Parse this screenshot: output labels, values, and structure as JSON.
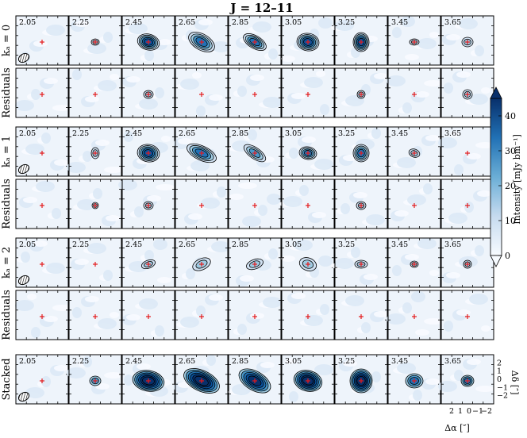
{
  "figure": {
    "title": "J = 12–11",
    "velocities": [
      "2.05",
      "2.25",
      "2.45",
      "2.65",
      "2.85",
      "3.05",
      "3.25",
      "3.45",
      "3.65"
    ],
    "rows": [
      {
        "label": "kₐ = 0",
        "type": "data"
      },
      {
        "label": "Residuals",
        "type": "residual"
      },
      {
        "label": "kₐ = 1",
        "type": "data"
      },
      {
        "label": "Residuals",
        "type": "residual"
      },
      {
        "label": "kₐ = 2",
        "type": "data"
      },
      {
        "label": "Residuals",
        "type": "residual"
      },
      {
        "label": "Stacked",
        "type": "stacked"
      }
    ],
    "colorbar": {
      "label": "Intensity [mJy bm⁻¹]",
      "ticks": [
        "0",
        "10",
        "20",
        "30",
        "40"
      ],
      "min": 0,
      "max": 45,
      "cmap": "Blues"
    },
    "axes": {
      "xlabel": "Δα [″]",
      "ylabel": "Δδ [″]",
      "xticks": [
        "2",
        "1",
        "0",
        "−1",
        "−2"
      ],
      "yticks": [
        "2",
        "1",
        "0",
        "−1",
        "−2"
      ]
    }
  }
}
